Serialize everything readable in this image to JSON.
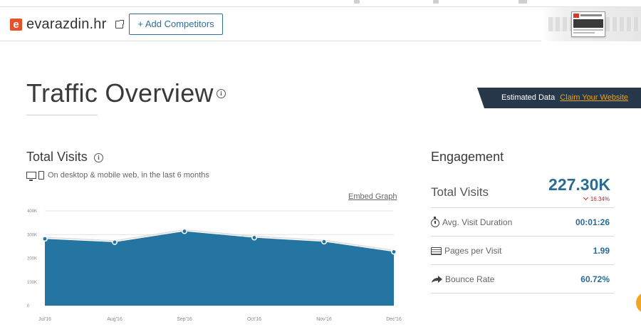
{
  "header": {
    "site_logo_letter": "e",
    "site_name": "evarazdin.hr",
    "add_competitors_label": "+ Add Competitors"
  },
  "page_title": "Traffic Overview",
  "estimated": {
    "label": "Estimated Data",
    "claim_link": "Claim Your Website"
  },
  "total_visits": {
    "title": "Total Visits",
    "device_note": "On desktop & mobile web, in the last 6 months",
    "embed_link": "Embed Graph"
  },
  "chart_data": {
    "type": "area",
    "categories": [
      "Jul'16",
      "Aug'16",
      "Sep'16",
      "Oct'16",
      "Nov'16",
      "Dec'16"
    ],
    "values": [
      282000,
      268000,
      314000,
      287000,
      270000,
      227300
    ],
    "yticks": [
      "0",
      "100K",
      "200K",
      "300K",
      "400K"
    ],
    "ylim": [
      0,
      400000
    ],
    "grid": true,
    "colors": {
      "area": "#2575a3",
      "line": "#dcdcdc",
      "point": "#2575a3"
    }
  },
  "engagement": {
    "title": "Engagement",
    "total_visits_label": "Total Visits",
    "total_visits_value": "227.30K",
    "total_visits_change": "16.34%",
    "rows": [
      {
        "icon": "stopwatch-icon",
        "label": "Avg. Visit Duration",
        "value": "00:01:26"
      },
      {
        "icon": "pages-icon",
        "label": "Pages per Visit",
        "value": "1.99"
      },
      {
        "icon": "bounce-arrow-icon",
        "label": "Bounce Rate",
        "value": "60.72%"
      }
    ]
  },
  "colors": {
    "accent": "#2a6b96",
    "negative": "#c0272d",
    "banner": "#27384a",
    "claim": "#e9a020",
    "brand": "#e8502a"
  }
}
